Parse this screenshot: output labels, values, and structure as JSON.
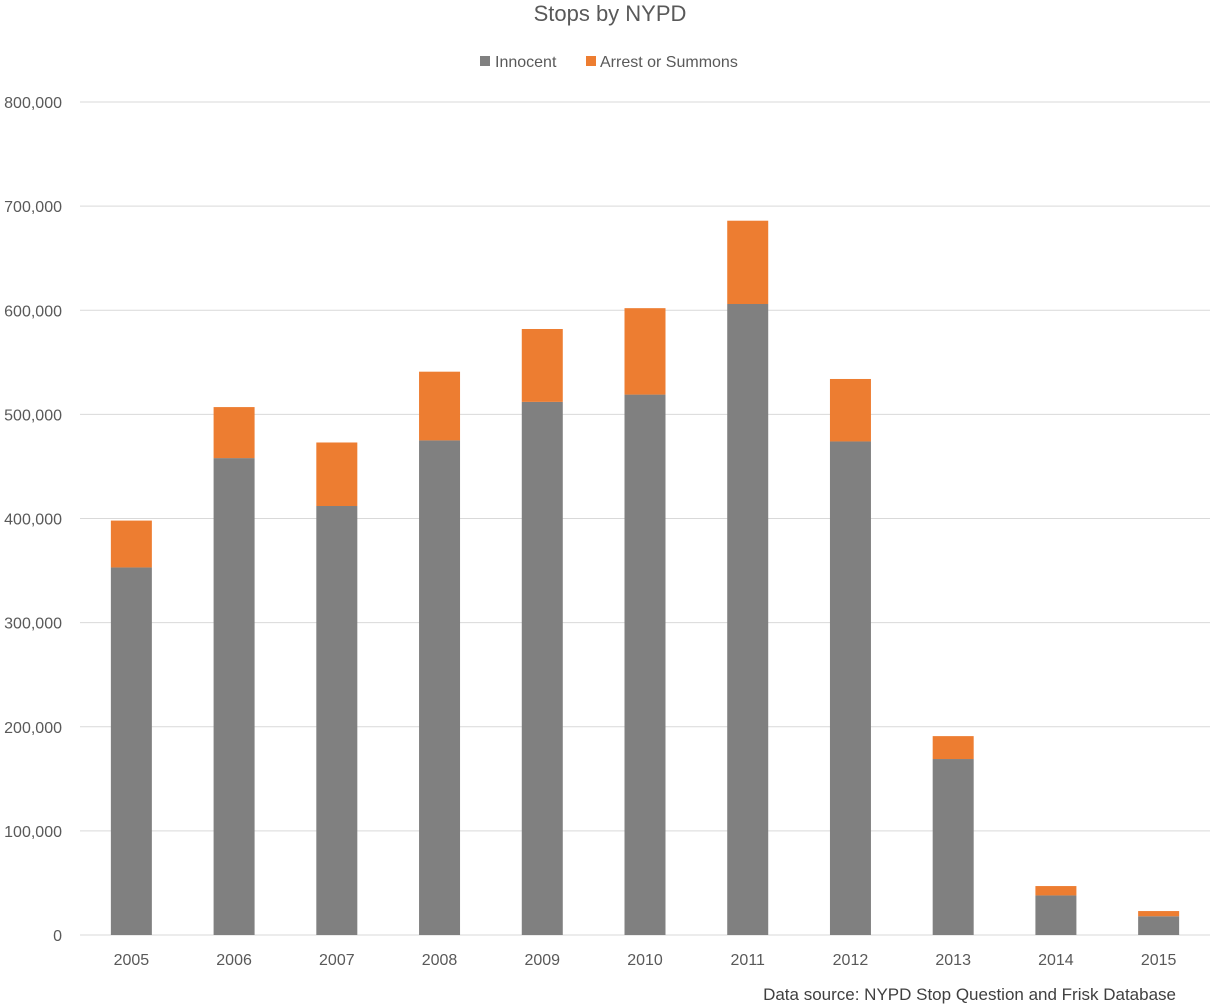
{
  "chart_data": {
    "type": "bar",
    "stacked": true,
    "title": "Stops by NYPD",
    "xlabel": "",
    "ylabel": "",
    "categories": [
      "2005",
      "2006",
      "2007",
      "2008",
      "2009",
      "2010",
      "2011",
      "2012",
      "2013",
      "2014",
      "2015"
    ],
    "series": [
      {
        "name": "Innocent",
        "color": "#808080",
        "values": [
          353000,
          458000,
          412000,
          475000,
          512000,
          519000,
          606000,
          474000,
          169000,
          38000,
          18000
        ]
      },
      {
        "name": "Arrest or Summons",
        "color": "#ED7D31",
        "values": [
          45000,
          49000,
          61000,
          66000,
          70000,
          83000,
          80000,
          60000,
          22000,
          9000,
          5000
        ]
      }
    ],
    "ylim": [
      0,
      800000
    ],
    "yticks": [
      0,
      100000,
      200000,
      300000,
      400000,
      500000,
      600000,
      700000,
      800000
    ],
    "ytick_labels": [
      "0",
      "100,000",
      "200,000",
      "300,000",
      "400,000",
      "500,000",
      "600,000",
      "700,000",
      "800,000"
    ],
    "grid": true,
    "legend_position": "top-center"
  },
  "source_note": "Data source: NYPD Stop Question and Frisk Database"
}
